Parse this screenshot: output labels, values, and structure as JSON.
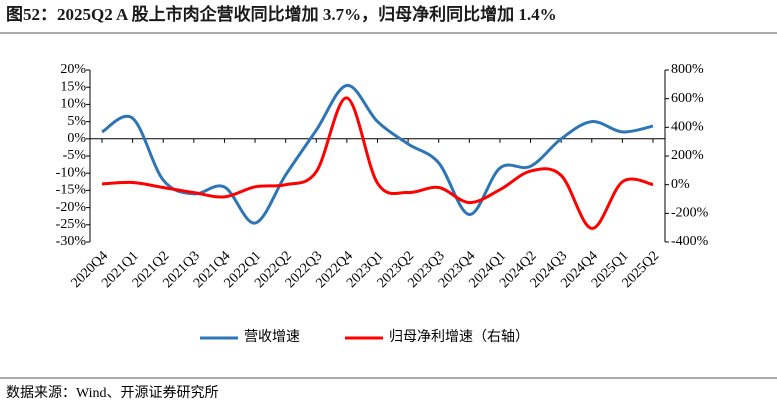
{
  "chart_data": {
    "type": "line",
    "title": "图52：2025Q2 A 股上市肉企营收同比增加 3.7%，归母净利同比增加 1.4%",
    "source": "数据来源：Wind、开源证券研究所",
    "categories": [
      "2020Q4",
      "2021Q1",
      "2021Q2",
      "2021Q3",
      "2021Q4",
      "2022Q1",
      "2022Q2",
      "2022Q3",
      "2022Q4",
      "2023Q1",
      "2023Q2",
      "2023Q3",
      "2023Q4",
      "2024Q1",
      "2024Q2",
      "2024Q3",
      "2024Q4",
      "2025Q1",
      "2025Q2"
    ],
    "series": [
      {
        "name": "营收增速",
        "color": "#2e75b6",
        "values": [
          2,
          6,
          -12,
          -16,
          -14,
          -24.5,
          -10.5,
          2.5,
          15.5,
          5,
          -1.5,
          -7,
          -22,
          -8.5,
          -8,
          0,
          5,
          2,
          3.7
        ]
      },
      {
        "name": "归母净利增速（右轴）",
        "color": "#ff0000",
        "axis": "y2",
        "values": [
          5,
          15,
          -20,
          -55,
          -85,
          -15,
          0,
          90,
          605,
          10,
          -55,
          -20,
          -125,
          -35,
          95,
          65,
          -305,
          20,
          1.4
        ]
      }
    ],
    "ylim": [
      -30,
      20
    ],
    "yticks": [
      {
        "value": 20,
        "label": "20%"
      },
      {
        "value": 15,
        "label": "15%"
      },
      {
        "value": 10,
        "label": "10%"
      },
      {
        "value": 5,
        "label": "5%"
      },
      {
        "value": 0,
        "label": "0%"
      },
      {
        "value": -5,
        "label": "-5%"
      },
      {
        "value": -10,
        "label": "-10%"
      },
      {
        "value": -15,
        "label": "-15%"
      },
      {
        "value": -20,
        "label": "-20%"
      },
      {
        "value": -25,
        "label": "-25%"
      },
      {
        "value": -30,
        "label": "-30%"
      }
    ],
    "y2lim": [
      -400,
      800
    ],
    "y2ticks": [
      {
        "value": 800,
        "label": "800%"
      },
      {
        "value": 600,
        "label": "600%"
      },
      {
        "value": 400,
        "label": "400%"
      },
      {
        "value": 200,
        "label": "200%"
      },
      {
        "value": 0,
        "label": "0%"
      },
      {
        "value": -200,
        "label": "-200%"
      },
      {
        "value": -400,
        "label": "-400%"
      }
    ]
  }
}
